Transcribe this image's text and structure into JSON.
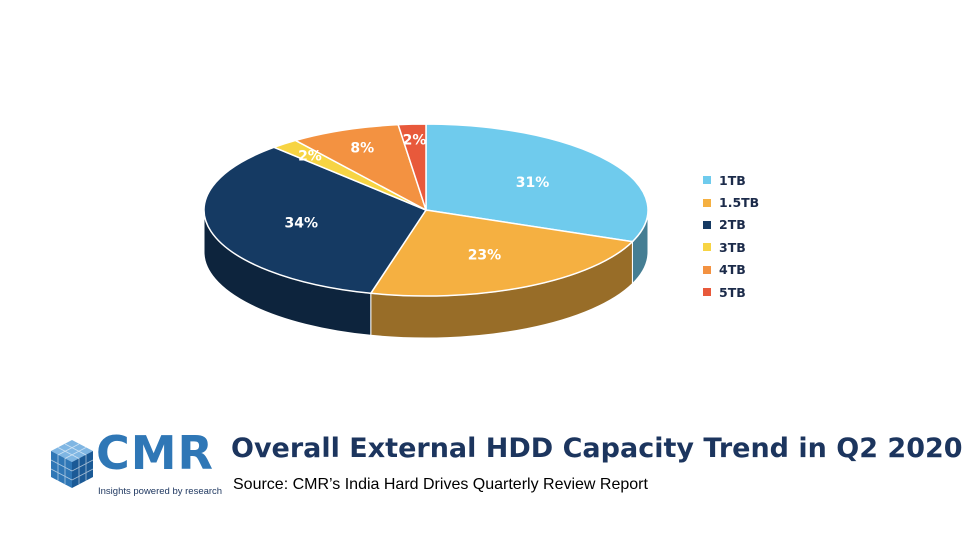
{
  "chart_data": {
    "type": "pie",
    "style": "3d",
    "title": "Overall External HDD Capacity Trend in Q2 2020",
    "subtitle": "Source: CMR’s India Hard Drives Quarterly Review Report",
    "categories": [
      "1TB",
      "1.5TB",
      "2TB",
      "3TB",
      "4TB",
      "5TB"
    ],
    "values": [
      31,
      23,
      34,
      2,
      8,
      2
    ],
    "labels": [
      "31%",
      "23%",
      "34%",
      "2%",
      "8%",
      "2%"
    ],
    "colors": [
      "#6fcbed",
      "#f5b041",
      "#153a63",
      "#f7d443",
      "#f39241",
      "#e8593b"
    ],
    "legend_position": "right"
  },
  "brand": {
    "logo_text": "CMR",
    "tagline": "Insights powered by research"
  }
}
